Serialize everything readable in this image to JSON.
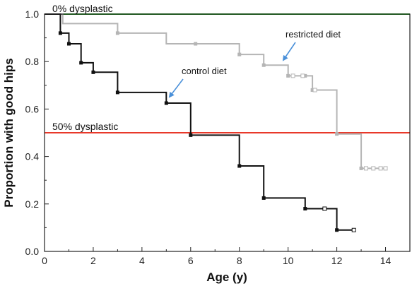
{
  "chart_data": {
    "type": "line",
    "xlabel": "Age (y)",
    "ylabel": "Proportion with good hips",
    "xlim": [
      0,
      15
    ],
    "ylim": [
      0,
      1.0
    ],
    "xticks": [
      0,
      2,
      4,
      6,
      8,
      10,
      12,
      14
    ],
    "xtick_labels": [
      "0",
      "2",
      "4",
      "6",
      "8",
      "10",
      "12",
      "14"
    ],
    "yticks": [
      0,
      0.2,
      0.4,
      0.6,
      0.8,
      1.0
    ],
    "ytick_labels": [
      "0.0",
      "0.2",
      "0.4",
      "0.6",
      "0.8",
      "1.0"
    ],
    "grid": false,
    "reference_lines": [
      {
        "label": "0% dysplastic",
        "y": 1.0,
        "color": "#22aa22"
      },
      {
        "label": "50% dysplastic",
        "y": 0.5,
        "color": "#e8392a"
      }
    ],
    "series": [
      {
        "name": "restricted diet",
        "color": "#b5b5b5",
        "step": true,
        "points": [
          [
            0,
            1.0
          ],
          [
            0.75,
            1.0
          ],
          [
            0.75,
            0.96
          ],
          [
            3,
            0.96
          ],
          [
            3,
            0.92
          ],
          [
            5,
            0.92
          ],
          [
            5,
            0.875
          ],
          [
            8,
            0.875
          ],
          [
            8,
            0.83
          ],
          [
            9,
            0.83
          ],
          [
            9,
            0.785
          ],
          [
            10,
            0.785
          ],
          [
            10,
            0.74
          ],
          [
            11,
            0.74
          ],
          [
            11,
            0.68
          ],
          [
            12,
            0.68
          ],
          [
            12,
            0.495
          ],
          [
            13,
            0.495
          ],
          [
            13,
            0.35
          ],
          [
            14,
            0.35
          ]
        ],
        "markers": [
          [
            3,
            0.92
          ],
          [
            6.2,
            0.875
          ],
          [
            8,
            0.83
          ],
          [
            9,
            0.785
          ],
          [
            10,
            0.74
          ],
          [
            10.7,
            0.74
          ],
          [
            11,
            0.68
          ],
          [
            12,
            0.495
          ],
          [
            13,
            0.35
          ]
        ],
        "censored": [
          [
            10.2,
            0.74
          ],
          [
            10.6,
            0.74
          ],
          [
            11.1,
            0.68
          ],
          [
            13.2,
            0.35
          ],
          [
            13.5,
            0.35
          ],
          [
            13.8,
            0.35
          ],
          [
            14.0,
            0.35
          ]
        ]
      },
      {
        "name": "control diet",
        "color": "#111111",
        "step": true,
        "points": [
          [
            0,
            1.0
          ],
          [
            0.65,
            1.0
          ],
          [
            0.65,
            0.92
          ],
          [
            1,
            0.92
          ],
          [
            1,
            0.875
          ],
          [
            1.5,
            0.875
          ],
          [
            1.5,
            0.795
          ],
          [
            2,
            0.795
          ],
          [
            2,
            0.755
          ],
          [
            3,
            0.755
          ],
          [
            3,
            0.67
          ],
          [
            5,
            0.67
          ],
          [
            5,
            0.625
          ],
          [
            6,
            0.625
          ],
          [
            6,
            0.49
          ],
          [
            8,
            0.49
          ],
          [
            8,
            0.36
          ],
          [
            9,
            0.36
          ],
          [
            9,
            0.225
          ],
          [
            10.7,
            0.225
          ],
          [
            10.7,
            0.18
          ],
          [
            12,
            0.18
          ],
          [
            12,
            0.09
          ],
          [
            12.7,
            0.09
          ]
        ],
        "markers": [
          [
            0.65,
            0.92
          ],
          [
            1,
            0.875
          ],
          [
            1.5,
            0.795
          ],
          [
            2,
            0.755
          ],
          [
            3,
            0.67
          ],
          [
            5,
            0.625
          ],
          [
            6,
            0.49
          ],
          [
            8,
            0.36
          ],
          [
            9,
            0.225
          ],
          [
            10.7,
            0.18
          ],
          [
            12,
            0.09
          ]
        ],
        "censored": [
          [
            11.5,
            0.18
          ],
          [
            12.7,
            0.09
          ]
        ]
      }
    ],
    "annotations": [
      {
        "text": "restricted diet",
        "points_to": [
          9.8,
          0.78
        ]
      },
      {
        "text": "control diet",
        "points_to": [
          5.1,
          0.64
        ]
      }
    ],
    "reference_label_texts": [
      "0% dysplastic",
      "50% dysplastic"
    ]
  }
}
